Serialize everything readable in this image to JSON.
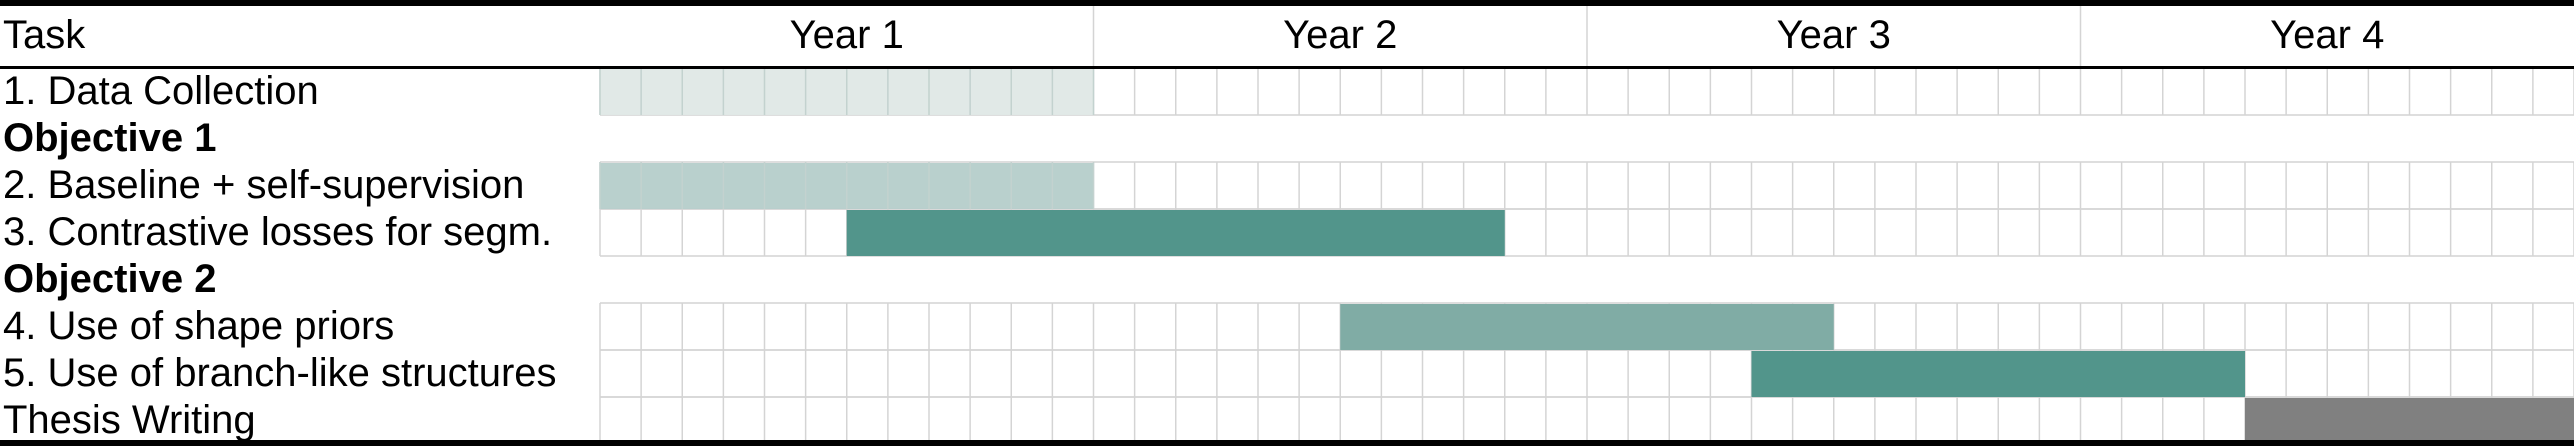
{
  "chart_data": {
    "type": "gantt",
    "header": {
      "task_column": "Task",
      "periods": [
        "Year 1",
        "Year 2",
        "Year 3",
        "Year 4"
      ]
    },
    "months_per_period": 12,
    "rows": [
      {
        "kind": "task",
        "label": "1. Data Collection",
        "start_month": 0,
        "end_month": 12,
        "color": "#dfe8e6"
      },
      {
        "kind": "section",
        "label": "Objective 1"
      },
      {
        "kind": "task",
        "label": "2. Baseline + self-supervision",
        "start_month": 0,
        "end_month": 12,
        "color": "#b5ceca"
      },
      {
        "kind": "task",
        "label": "3. Contrastive losses for segm.",
        "start_month": 6,
        "end_month": 22,
        "color": "#52958b"
      },
      {
        "kind": "section",
        "label": "Objective 2"
      },
      {
        "kind": "task",
        "label": "4. Use of shape priors",
        "start_month": 18,
        "end_month": 30,
        "color": "#80aca5"
      },
      {
        "kind": "task",
        "label": "5. Use of branch-like structures",
        "start_month": 28,
        "end_month": 40,
        "color": "#52958b"
      },
      {
        "kind": "task",
        "label": "Thesis Writing",
        "start_month": 40,
        "end_month": 48,
        "color": "#808080"
      }
    ]
  }
}
